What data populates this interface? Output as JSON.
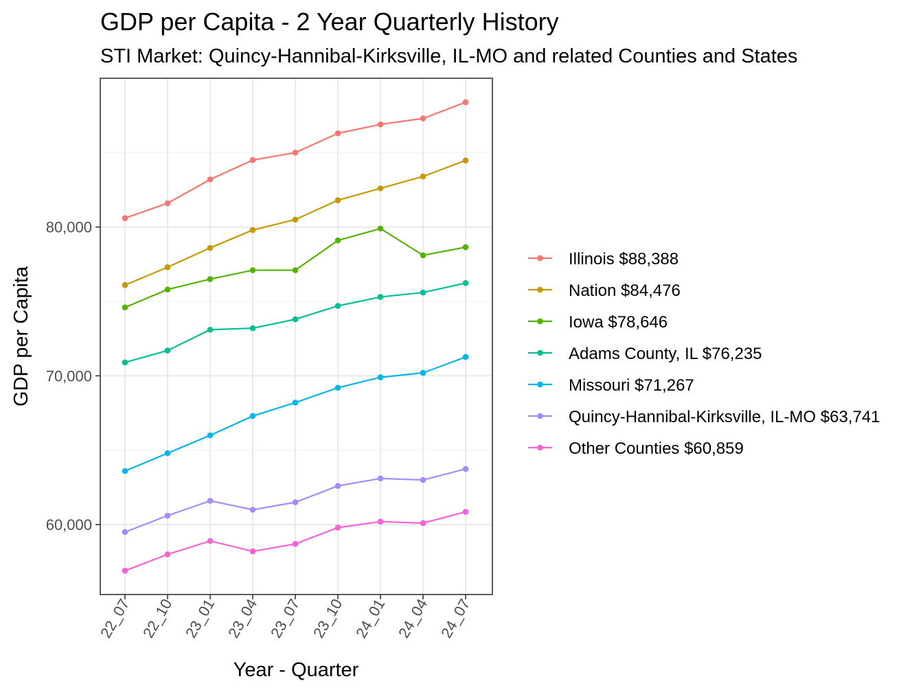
{
  "chart_data": {
    "type": "line",
    "title": "GDP per Capita - 2 Year Quarterly History",
    "subtitle": "STI Market: Quincy-Hannibal-Kirksville, IL-MO and related Counties and States",
    "xlabel": "Year - Quarter",
    "ylabel": "GDP per Capita",
    "categories": [
      "22_07",
      "22_10",
      "23_01",
      "23_04",
      "23_07",
      "23_10",
      "24_01",
      "24_04",
      "24_07"
    ],
    "ylim": [
      55300,
      90000
    ],
    "yticks": [
      60000,
      70000,
      80000
    ],
    "ytick_labels": [
      "60,000",
      "70,000",
      "80,000"
    ],
    "grid": true,
    "legend_position": "right",
    "series": [
      {
        "name": "Illinois",
        "legend_label": "Illinois $88,388",
        "color": "#F8766D",
        "values": [
          80600,
          81600,
          83200,
          84500,
          85000,
          86300,
          86900,
          87300,
          88388
        ]
      },
      {
        "name": "Nation",
        "legend_label": "Nation $84,476",
        "color": "#C49A00",
        "values": [
          76100,
          77300,
          78600,
          79800,
          80500,
          81800,
          82600,
          83400,
          84476
        ]
      },
      {
        "name": "Iowa",
        "legend_label": "Iowa $78,646",
        "color": "#53B400",
        "values": [
          74600,
          75800,
          76500,
          77100,
          77100,
          79100,
          79900,
          78100,
          78646
        ]
      },
      {
        "name": "Adams County, IL",
        "legend_label": "Adams County, IL $76,235",
        "color": "#00C094",
        "values": [
          70900,
          71700,
          73100,
          73200,
          73800,
          74700,
          75300,
          75600,
          76235
        ]
      },
      {
        "name": "Missouri",
        "legend_label": "Missouri $71,267",
        "color": "#00B6EB",
        "values": [
          63600,
          64800,
          66000,
          67300,
          68200,
          69200,
          69900,
          70200,
          71267
        ]
      },
      {
        "name": "Quincy-Hannibal-Kirksville, IL-MO",
        "legend_label": "Quincy-Hannibal-Kirksville, IL-MO $63,741",
        "color": "#A58AFF",
        "values": [
          59500,
          60600,
          61600,
          61000,
          61500,
          62600,
          63100,
          63000,
          63741
        ]
      },
      {
        "name": "Other Counties",
        "legend_label": "Other Counties $60,859",
        "color": "#FB61D7",
        "values": [
          56900,
          58000,
          58900,
          58200,
          58700,
          59800,
          60200,
          60100,
          60859
        ]
      }
    ]
  }
}
